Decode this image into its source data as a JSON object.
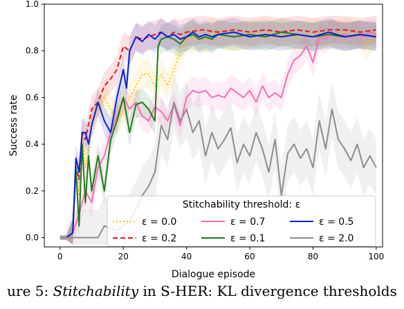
{
  "chart_data": {
    "type": "line",
    "xlabel": "Dialogue episode",
    "ylabel": "Success rate",
    "xlim": [
      -5,
      102
    ],
    "ylim": [
      -0.04,
      1.0
    ],
    "xticks": [
      "0",
      "20",
      "40",
      "60",
      "80",
      "100"
    ],
    "yticks": [
      "0.0",
      "0.2",
      "0.4",
      "0.6",
      "0.8",
      "1.0"
    ],
    "grid": false,
    "legend": {
      "title": "Stitchability threshold: ε",
      "placement": "lower-right"
    },
    "series": [
      {
        "name": "ε = 0.0",
        "color": "#f5c518",
        "style": "dotted",
        "x": [
          0,
          2,
          4,
          5,
          6,
          7,
          8,
          9,
          10,
          12,
          14,
          16,
          18,
          20,
          22,
          24,
          26,
          28,
          30,
          32,
          34,
          36,
          38,
          40,
          42,
          44,
          46,
          48,
          50,
          55,
          60,
          65,
          70,
          75,
          80,
          85,
          90,
          95,
          97,
          100
        ],
        "y": [
          0,
          0,
          0.02,
          0.25,
          0.18,
          0.45,
          0.3,
          0.38,
          0.5,
          0.55,
          0.6,
          0.55,
          0.5,
          0.55,
          0.6,
          0.65,
          0.7,
          0.7,
          0.65,
          0.7,
          0.65,
          0.72,
          0.8,
          0.85,
          0.85,
          0.86,
          0.85,
          0.88,
          0.87,
          0.86,
          0.87,
          0.88,
          0.87,
          0.86,
          0.88,
          0.87,
          0.88,
          0.87,
          0.82,
          0.88
        ]
      },
      {
        "name": "ε = 0.2",
        "color": "#e8141c",
        "style": "dashed",
        "x": [
          0,
          2,
          4,
          5,
          6,
          7,
          8,
          10,
          12,
          14,
          16,
          18,
          20,
          22,
          24,
          26,
          28,
          30,
          32,
          34,
          36,
          38,
          40,
          45,
          50,
          55,
          60,
          65,
          70,
          75,
          80,
          85,
          90,
          95,
          100
        ],
        "y": [
          0,
          0,
          0.02,
          0.3,
          0.25,
          0.45,
          0.42,
          0.55,
          0.58,
          0.65,
          0.68,
          0.72,
          0.82,
          0.8,
          0.86,
          0.85,
          0.86,
          0.87,
          0.88,
          0.86,
          0.88,
          0.87,
          0.88,
          0.89,
          0.88,
          0.89,
          0.88,
          0.89,
          0.88,
          0.89,
          0.88,
          0.89,
          0.89,
          0.88,
          0.89
        ]
      },
      {
        "name": "ε = 0.7",
        "color": "#f26fb4",
        "style": "solid",
        "x": [
          0,
          2,
          4,
          6,
          8,
          10,
          12,
          14,
          16,
          18,
          20,
          22,
          24,
          26,
          28,
          30,
          32,
          34,
          36,
          38,
          40,
          42,
          44,
          46,
          48,
          50,
          52,
          54,
          56,
          58,
          60,
          62,
          64,
          66,
          68,
          70,
          72,
          74,
          76,
          78,
          80,
          82,
          84,
          86,
          88,
          90,
          92,
          94,
          96,
          98,
          100
        ],
        "y": [
          0,
          0,
          0.02,
          0.1,
          0.2,
          0.15,
          0.3,
          0.35,
          0.45,
          0.52,
          0.6,
          0.55,
          0.58,
          0.52,
          0.5,
          0.56,
          0.54,
          0.5,
          0.57,
          0.48,
          0.6,
          0.63,
          0.62,
          0.63,
          0.6,
          0.61,
          0.6,
          0.64,
          0.62,
          0.6,
          0.63,
          0.58,
          0.65,
          0.6,
          0.62,
          0.6,
          0.7,
          0.76,
          0.78,
          0.82,
          0.75,
          0.86,
          0.85,
          0.88,
          0.86,
          0.87,
          0.86,
          0.87,
          0.86,
          0.88,
          0.87
        ]
      },
      {
        "name": "ε = 0.1",
        "color": "#1f7a1f",
        "style": "solid",
        "x": [
          0,
          2,
          4,
          5,
          6,
          7,
          8,
          9,
          10,
          12,
          14,
          16,
          18,
          20,
          22,
          24,
          26,
          28,
          30,
          31,
          32,
          34,
          36,
          38,
          40,
          42,
          44,
          46,
          48,
          50,
          55,
          60,
          65,
          70,
          75,
          80,
          85,
          90,
          95,
          100
        ],
        "y": [
          0,
          0,
          0.02,
          0.3,
          0.05,
          0.4,
          0.15,
          0.35,
          0.2,
          0.35,
          0.2,
          0.42,
          0.5,
          0.6,
          0.45,
          0.57,
          0.58,
          0.55,
          0.5,
          0.82,
          0.85,
          0.86,
          0.85,
          0.83,
          0.86,
          0.87,
          0.85,
          0.86,
          0.85,
          0.87,
          0.86,
          0.87,
          0.86,
          0.88,
          0.87,
          0.86,
          0.87,
          0.86,
          0.87,
          0.86
        ]
      },
      {
        "name": "ε = 0.5",
        "color": "#0a1fd6",
        "style": "solid",
        "x": [
          0,
          2,
          4,
          5,
          6,
          7,
          8,
          9,
          10,
          12,
          14,
          16,
          18,
          20,
          21,
          22,
          24,
          26,
          28,
          30,
          32,
          34,
          36,
          38,
          40,
          42,
          44,
          46,
          48,
          50,
          55,
          60,
          65,
          70,
          75,
          80,
          85,
          90,
          95,
          100
        ],
        "y": [
          0,
          0,
          0.02,
          0.34,
          0.28,
          0.45,
          0.45,
          0.4,
          0.48,
          0.58,
          0.5,
          0.45,
          0.6,
          0.72,
          0.64,
          0.8,
          0.86,
          0.84,
          0.87,
          0.85,
          0.88,
          0.86,
          0.87,
          0.85,
          0.86,
          0.88,
          0.86,
          0.87,
          0.86,
          0.87,
          0.88,
          0.86,
          0.87,
          0.86,
          0.87,
          0.86,
          0.88,
          0.86,
          0.87,
          0.86
        ]
      },
      {
        "name": "ε = 2.0",
        "color": "#8c8c8c",
        "style": "solid",
        "x": [
          0,
          2,
          4,
          6,
          8,
          10,
          12,
          14,
          16,
          18,
          20,
          22,
          24,
          26,
          28,
          30,
          32,
          34,
          36,
          38,
          40,
          42,
          44,
          46,
          48,
          50,
          52,
          54,
          56,
          58,
          60,
          62,
          64,
          66,
          68,
          70,
          72,
          74,
          76,
          78,
          80,
          82,
          84,
          86,
          88,
          90,
          92,
          94,
          96,
          98,
          100
        ],
        "y": [
          0,
          0,
          0,
          0,
          0,
          0,
          0,
          0.05,
          0.04,
          0.03,
          0.05,
          0.07,
          0.12,
          0.18,
          0.22,
          0.28,
          0.48,
          0.42,
          0.58,
          0.5,
          0.55,
          0.45,
          0.5,
          0.35,
          0.45,
          0.38,
          0.42,
          0.47,
          0.32,
          0.4,
          0.35,
          0.45,
          0.38,
          0.28,
          0.42,
          0.18,
          0.36,
          0.4,
          0.34,
          0.38,
          0.3,
          0.5,
          0.38,
          0.55,
          0.42,
          0.38,
          0.33,
          0.4,
          0.3,
          0.35,
          0.3
        ]
      }
    ]
  },
  "caption": {
    "prefix": "ure 5: ",
    "emph": "Stitchability",
    "suffix": " in S-HER: KL divergence thresholds"
  }
}
